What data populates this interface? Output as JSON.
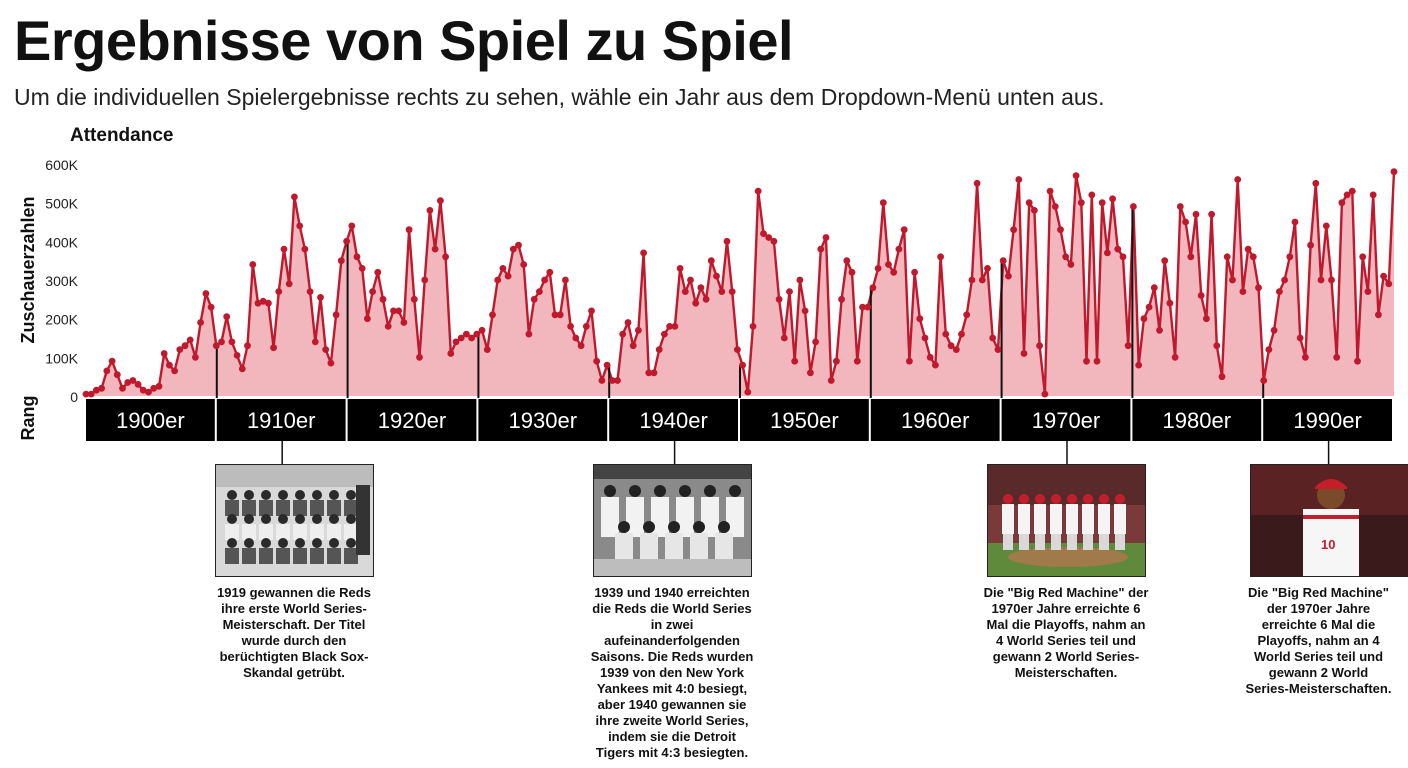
{
  "header": {
    "title": "Ergebnisse von Spiel zu Spiel",
    "subtitle": "Um die individuellen Spielergebnisse rechts zu sehen, wähle ein Jahr aus dem Dropdown-Menü unten aus."
  },
  "colors": {
    "line": "#c0182c",
    "fill": "#f1b7bc",
    "band": "#000000",
    "band_text": "#ffffff"
  },
  "chart_data": {
    "type": "area",
    "title": "Attendance",
    "ylabel": "Zuschauerzahlen",
    "band_label": "Rang",
    "ylim": [
      0,
      600000
    ],
    "yticks": [
      {
        "value": 0,
        "label": "0"
      },
      {
        "value": 100000,
        "label": "100K"
      },
      {
        "value": 200000,
        "label": "200K"
      },
      {
        "value": 300000,
        "label": "300K"
      },
      {
        "value": 400000,
        "label": "400K"
      },
      {
        "value": 500000,
        "label": "500K"
      },
      {
        "value": 600000,
        "label": "600K"
      }
    ],
    "grid": false,
    "decades": [
      "1900er",
      "1910er",
      "1920er",
      "1930er",
      "1940er",
      "1950er",
      "1960er",
      "1970er",
      "1980er",
      "1990er"
    ],
    "series": [
      {
        "name": "Attendance",
        "values": [
          5000,
          5000,
          15000,
          20000,
          65000,
          90000,
          55000,
          20000,
          35000,
          40000,
          30000,
          15000,
          10000,
          20000,
          25000,
          110000,
          80000,
          65000,
          120000,
          130000,
          145000,
          100000,
          190000,
          265000,
          230000,
          130000,
          140000,
          205000,
          140000,
          105000,
          70000,
          130000,
          340000,
          240000,
          245000,
          240000,
          125000,
          270000,
          380000,
          290000,
          515000,
          440000,
          380000,
          270000,
          140000,
          255000,
          120000,
          85000,
          210000,
          350000,
          400000,
          440000,
          360000,
          330000,
          200000,
          270000,
          320000,
          250000,
          180000,
          220000,
          220000,
          190000,
          430000,
          250000,
          100000,
          300000,
          480000,
          380000,
          505000,
          360000,
          110000,
          140000,
          150000,
          160000,
          150000,
          160000,
          170000,
          120000,
          210000,
          300000,
          330000,
          310000,
          380000,
          390000,
          340000,
          160000,
          250000,
          270000,
          300000,
          320000,
          210000,
          210000,
          300000,
          180000,
          150000,
          130000,
          180000,
          220000,
          90000,
          40000,
          80000,
          40000,
          40000,
          160000,
          190000,
          130000,
          170000,
          370000,
          60000,
          60000,
          120000,
          160000,
          180000,
          180000,
          330000,
          270000,
          300000,
          240000,
          280000,
          250000,
          350000,
          310000,
          270000,
          400000,
          270000,
          120000,
          80000,
          10000,
          180000,
          530000,
          420000,
          410000,
          400000,
          250000,
          150000,
          270000,
          90000,
          300000,
          220000,
          60000,
          140000,
          380000,
          410000,
          40000,
          90000,
          250000,
          350000,
          320000,
          90000,
          230000,
          230000,
          280000,
          330000,
          500000,
          340000,
          320000,
          380000,
          430000,
          90000,
          320000,
          200000,
          150000,
          100000,
          80000,
          360000,
          160000,
          130000,
          120000,
          160000,
          210000,
          300000,
          550000,
          300000,
          330000,
          150000,
          120000,
          350000,
          310000,
          430000,
          560000,
          110000,
          500000,
          480000,
          130000,
          5000,
          530000,
          490000,
          430000,
          360000,
          340000,
          570000,
          500000,
          90000,
          520000,
          90000,
          500000,
          370000,
          510000,
          380000,
          360000,
          130000,
          490000,
          80000,
          200000,
          230000,
          280000,
          170000,
          350000,
          240000,
          100000,
          490000,
          450000,
          360000,
          470000,
          260000,
          200000,
          470000,
          130000,
          50000,
          360000,
          300000,
          560000,
          270000,
          380000,
          360000,
          280000,
          40000,
          120000,
          170000,
          270000,
          300000,
          360000,
          450000,
          150000,
          100000,
          390000,
          550000,
          300000,
          440000,
          300000,
          100000,
          500000,
          520000,
          530000,
          90000,
          360000,
          270000,
          520000,
          210000,
          310000,
          290000,
          580000
        ]
      }
    ]
  },
  "annotations": [
    {
      "year": 1910,
      "image": "team-photo-1919",
      "text": "1919 gewannen die Reds\nihre erste World Series-\nMeisterschaft. Der Titel\nwurde durch den\nberüchtigten Black Sox-\nSkandal getrübt."
    },
    {
      "year": 1940,
      "image": "team-photo-1940",
      "text": "1939 und 1940 erreichten\ndie Reds die World Series\nin zwei\naufeinanderfolgenden\nSaisons. Die Reds wurden\n1939 von den New York\nYankees mit 4:0 besiegt,\naber 1940 gewannen sie\nihre zweite World Series,\nindem sie die Detroit\nTigers mit 4:3 besiegten."
    },
    {
      "year": 1970,
      "image": "players-mound-1970s",
      "text": "Die \"Big Red Machine\" der\n1970er Jahre erreichte 6\nMal die Playoffs, nahm an\n4 World Series teil und\ngewann 2 World Series-\nMeisterschaften."
    },
    {
      "year": 1990,
      "image": "player-portrait-1990s",
      "text": "Die \"Big Red Machine\"\nder 1970er Jahre\nerreichte 6 Mal die\nPlayoffs, nahm an 4\nWorld Series teil und\ngewann 2 World\nSeries-Meisterschaften."
    }
  ]
}
